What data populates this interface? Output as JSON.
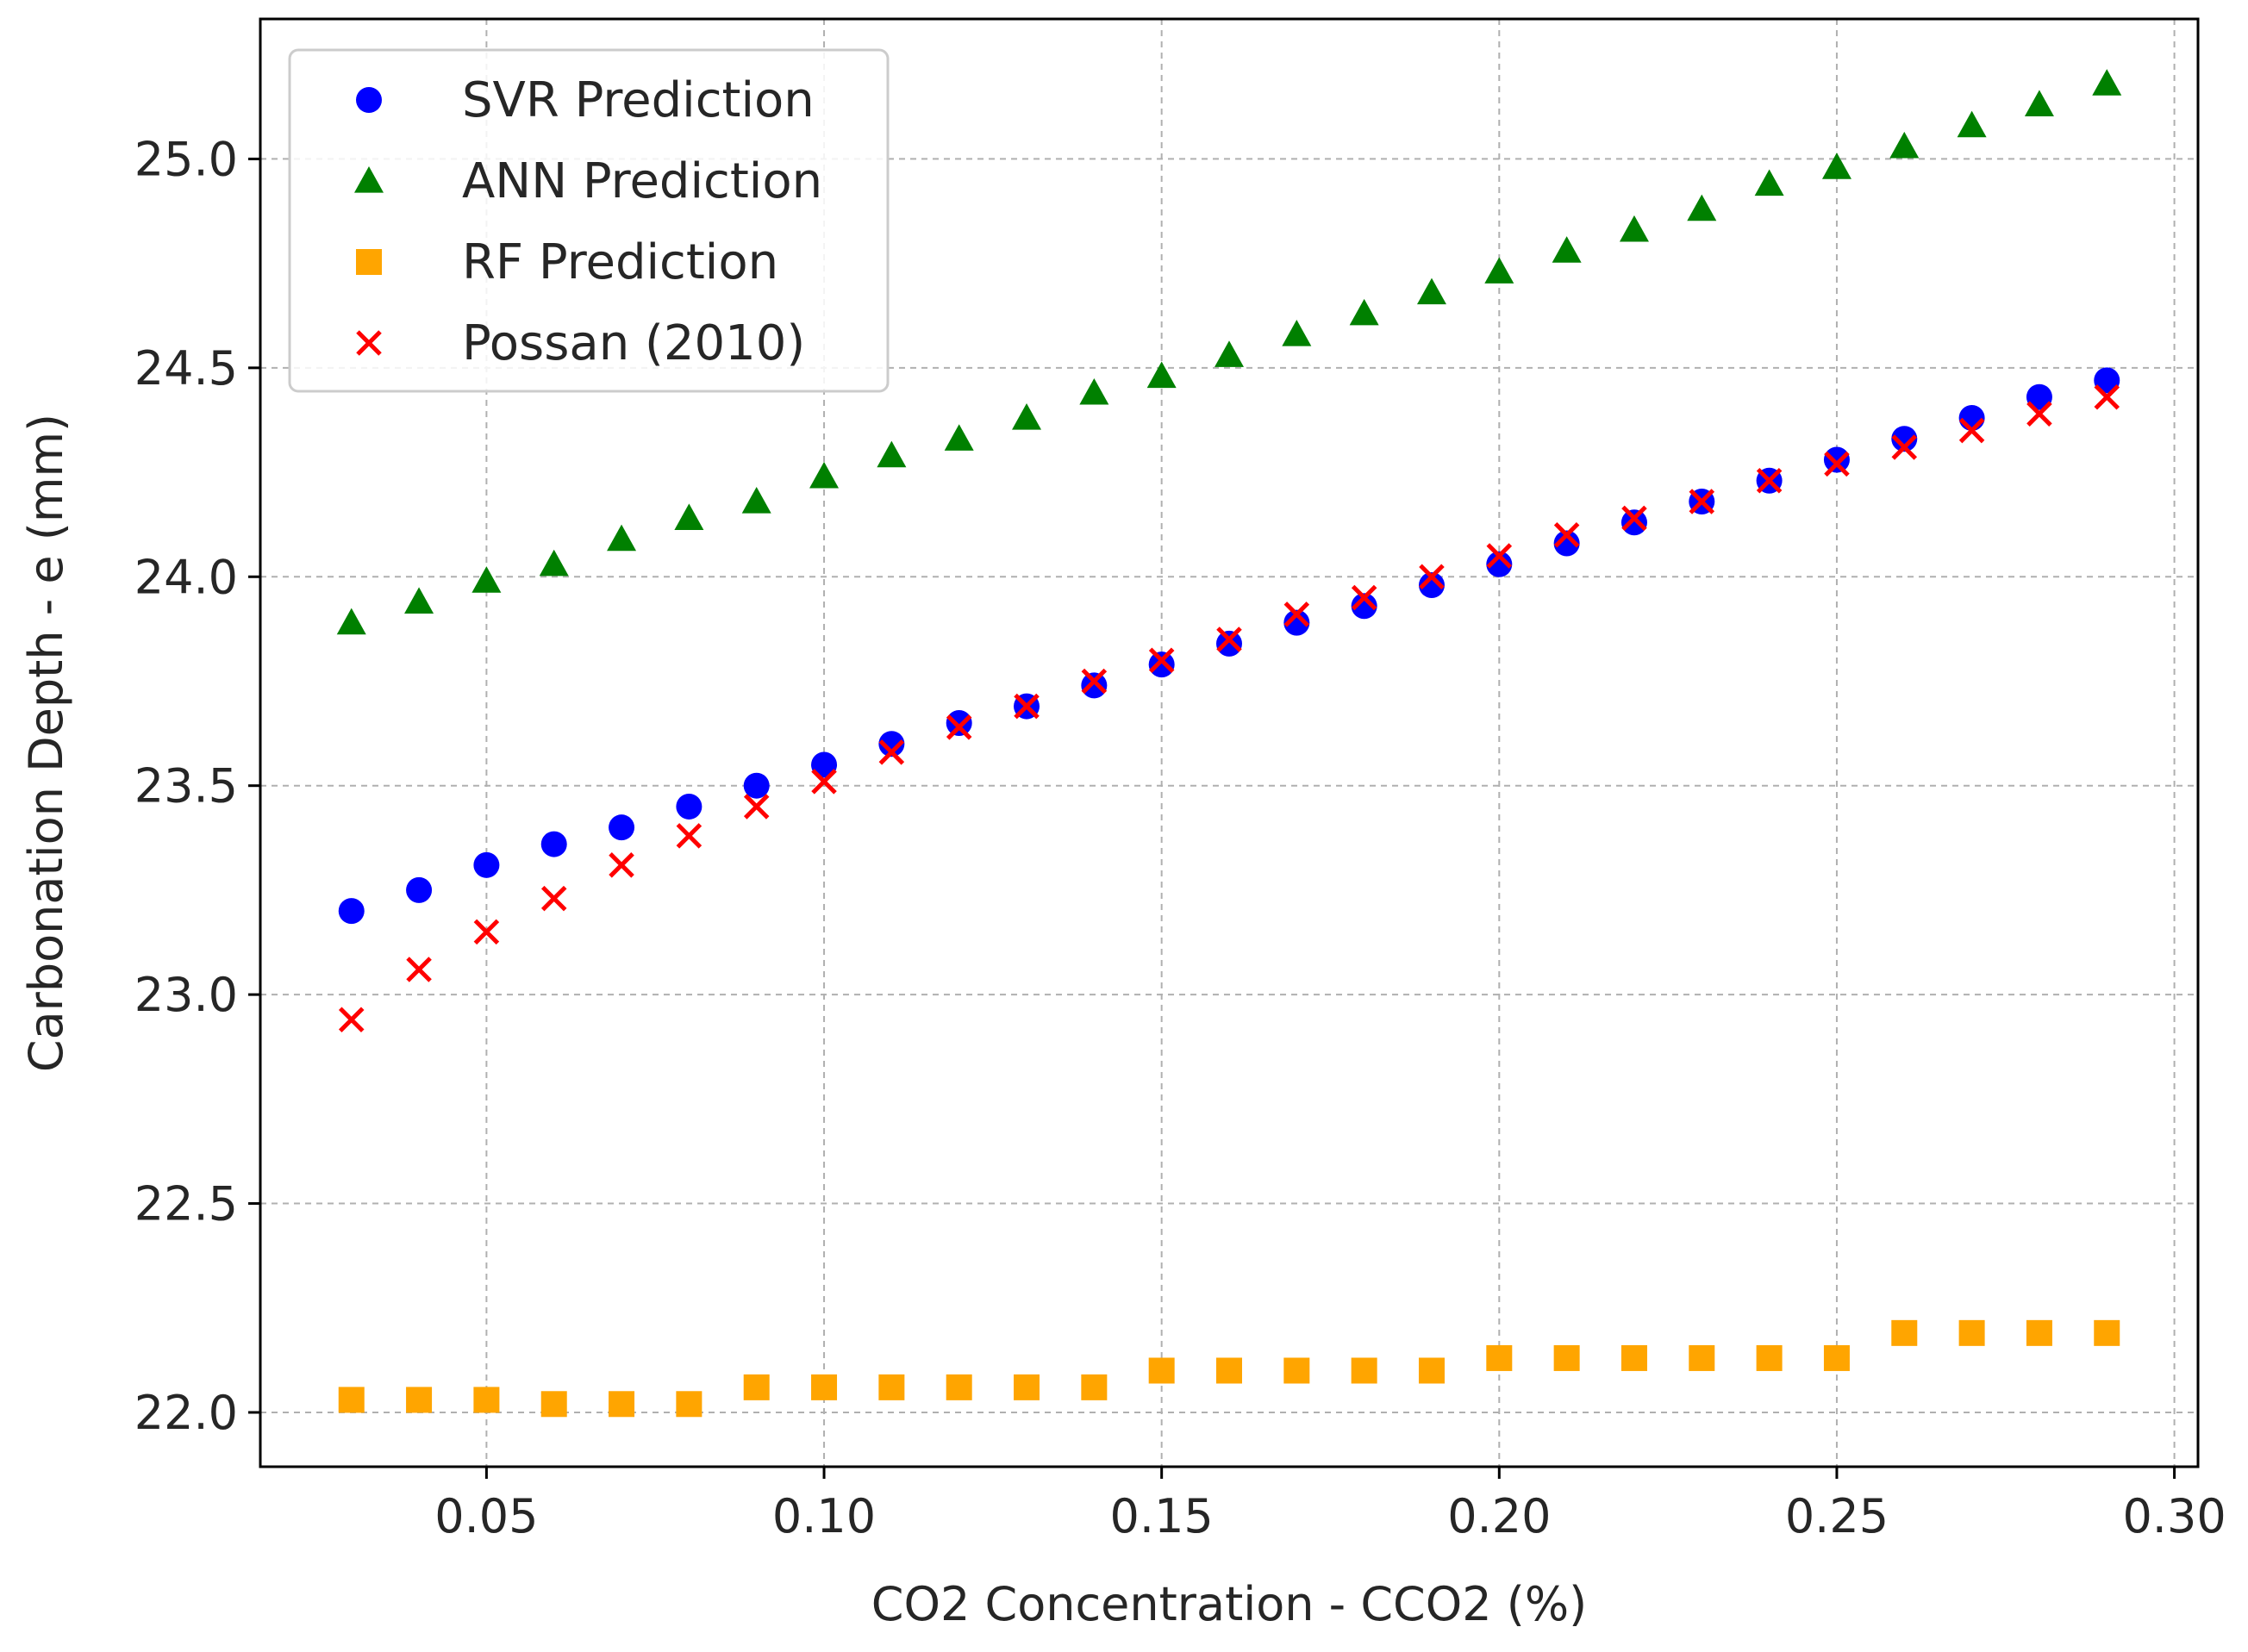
{
  "chart_data": {
    "type": "scatter",
    "title": "",
    "xlabel": "CO2 Concentration - CCO2 (%)",
    "ylabel": "Carbonation Depth - e (mm)",
    "xlim": [
      0.0165,
      0.3035
    ],
    "ylim": [
      21.87,
      25.335
    ],
    "xticks": [
      0.05,
      0.1,
      0.15,
      0.2,
      0.25,
      0.3
    ],
    "xtick_labels": [
      "0.05",
      "0.10",
      "0.15",
      "0.20",
      "0.25",
      "0.30"
    ],
    "yticks": [
      22.0,
      22.5,
      23.0,
      23.5,
      24.0,
      24.5,
      25.0
    ],
    "ytick_labels": [
      "22.0",
      "22.5",
      "23.0",
      "23.5",
      "24.0",
      "24.5",
      "25.0"
    ],
    "grid": true,
    "legend_position": "top-left",
    "x": [
      0.03,
      0.04,
      0.05,
      0.06,
      0.07,
      0.08,
      0.09,
      0.1,
      0.11,
      0.12,
      0.13,
      0.14,
      0.15,
      0.16,
      0.17,
      0.18,
      0.19,
      0.2,
      0.21,
      0.22,
      0.23,
      0.24,
      0.25,
      0.26,
      0.27,
      0.28,
      0.29
    ],
    "series": [
      {
        "name": "SVR Prediction",
        "marker": "circle",
        "color": "#0000ff",
        "values": [
          23.2,
          23.25,
          23.31,
          23.36,
          23.4,
          23.45,
          23.5,
          23.55,
          23.6,
          23.65,
          23.69,
          23.74,
          23.79,
          23.84,
          23.89,
          23.93,
          23.98,
          24.03,
          24.08,
          24.13,
          24.18,
          24.23,
          24.28,
          24.33,
          24.38,
          24.43,
          24.47
        ]
      },
      {
        "name": "ANN Prediction",
        "marker": "triangle",
        "color": "#008000",
        "values": [
          23.89,
          23.94,
          23.99,
          24.03,
          24.09,
          24.14,
          24.18,
          24.24,
          24.29,
          24.33,
          24.38,
          24.44,
          24.48,
          24.53,
          24.58,
          24.63,
          24.68,
          24.73,
          24.78,
          24.83,
          24.88,
          24.94,
          24.98,
          25.03,
          25.08,
          25.13,
          25.18
        ]
      },
      {
        "name": "RF Prediction",
        "marker": "square",
        "color": "#ffa500",
        "values": [
          22.03,
          22.03,
          22.03,
          22.02,
          22.02,
          22.02,
          22.06,
          22.06,
          22.06,
          22.06,
          22.06,
          22.06,
          22.1,
          22.1,
          22.1,
          22.1,
          22.1,
          22.13,
          22.13,
          22.13,
          22.13,
          22.13,
          22.13,
          22.19,
          22.19,
          22.19,
          22.19
        ]
      },
      {
        "name": "Possan (2010)",
        "marker": "x",
        "color": "#ff0000",
        "values": [
          22.94,
          23.06,
          23.15,
          23.23,
          23.31,
          23.38,
          23.45,
          23.51,
          23.58,
          23.64,
          23.69,
          23.75,
          23.8,
          23.85,
          23.91,
          23.95,
          24.0,
          24.05,
          24.1,
          24.14,
          24.18,
          24.23,
          24.27,
          24.31,
          24.35,
          24.39,
          24.43
        ]
      }
    ]
  }
}
